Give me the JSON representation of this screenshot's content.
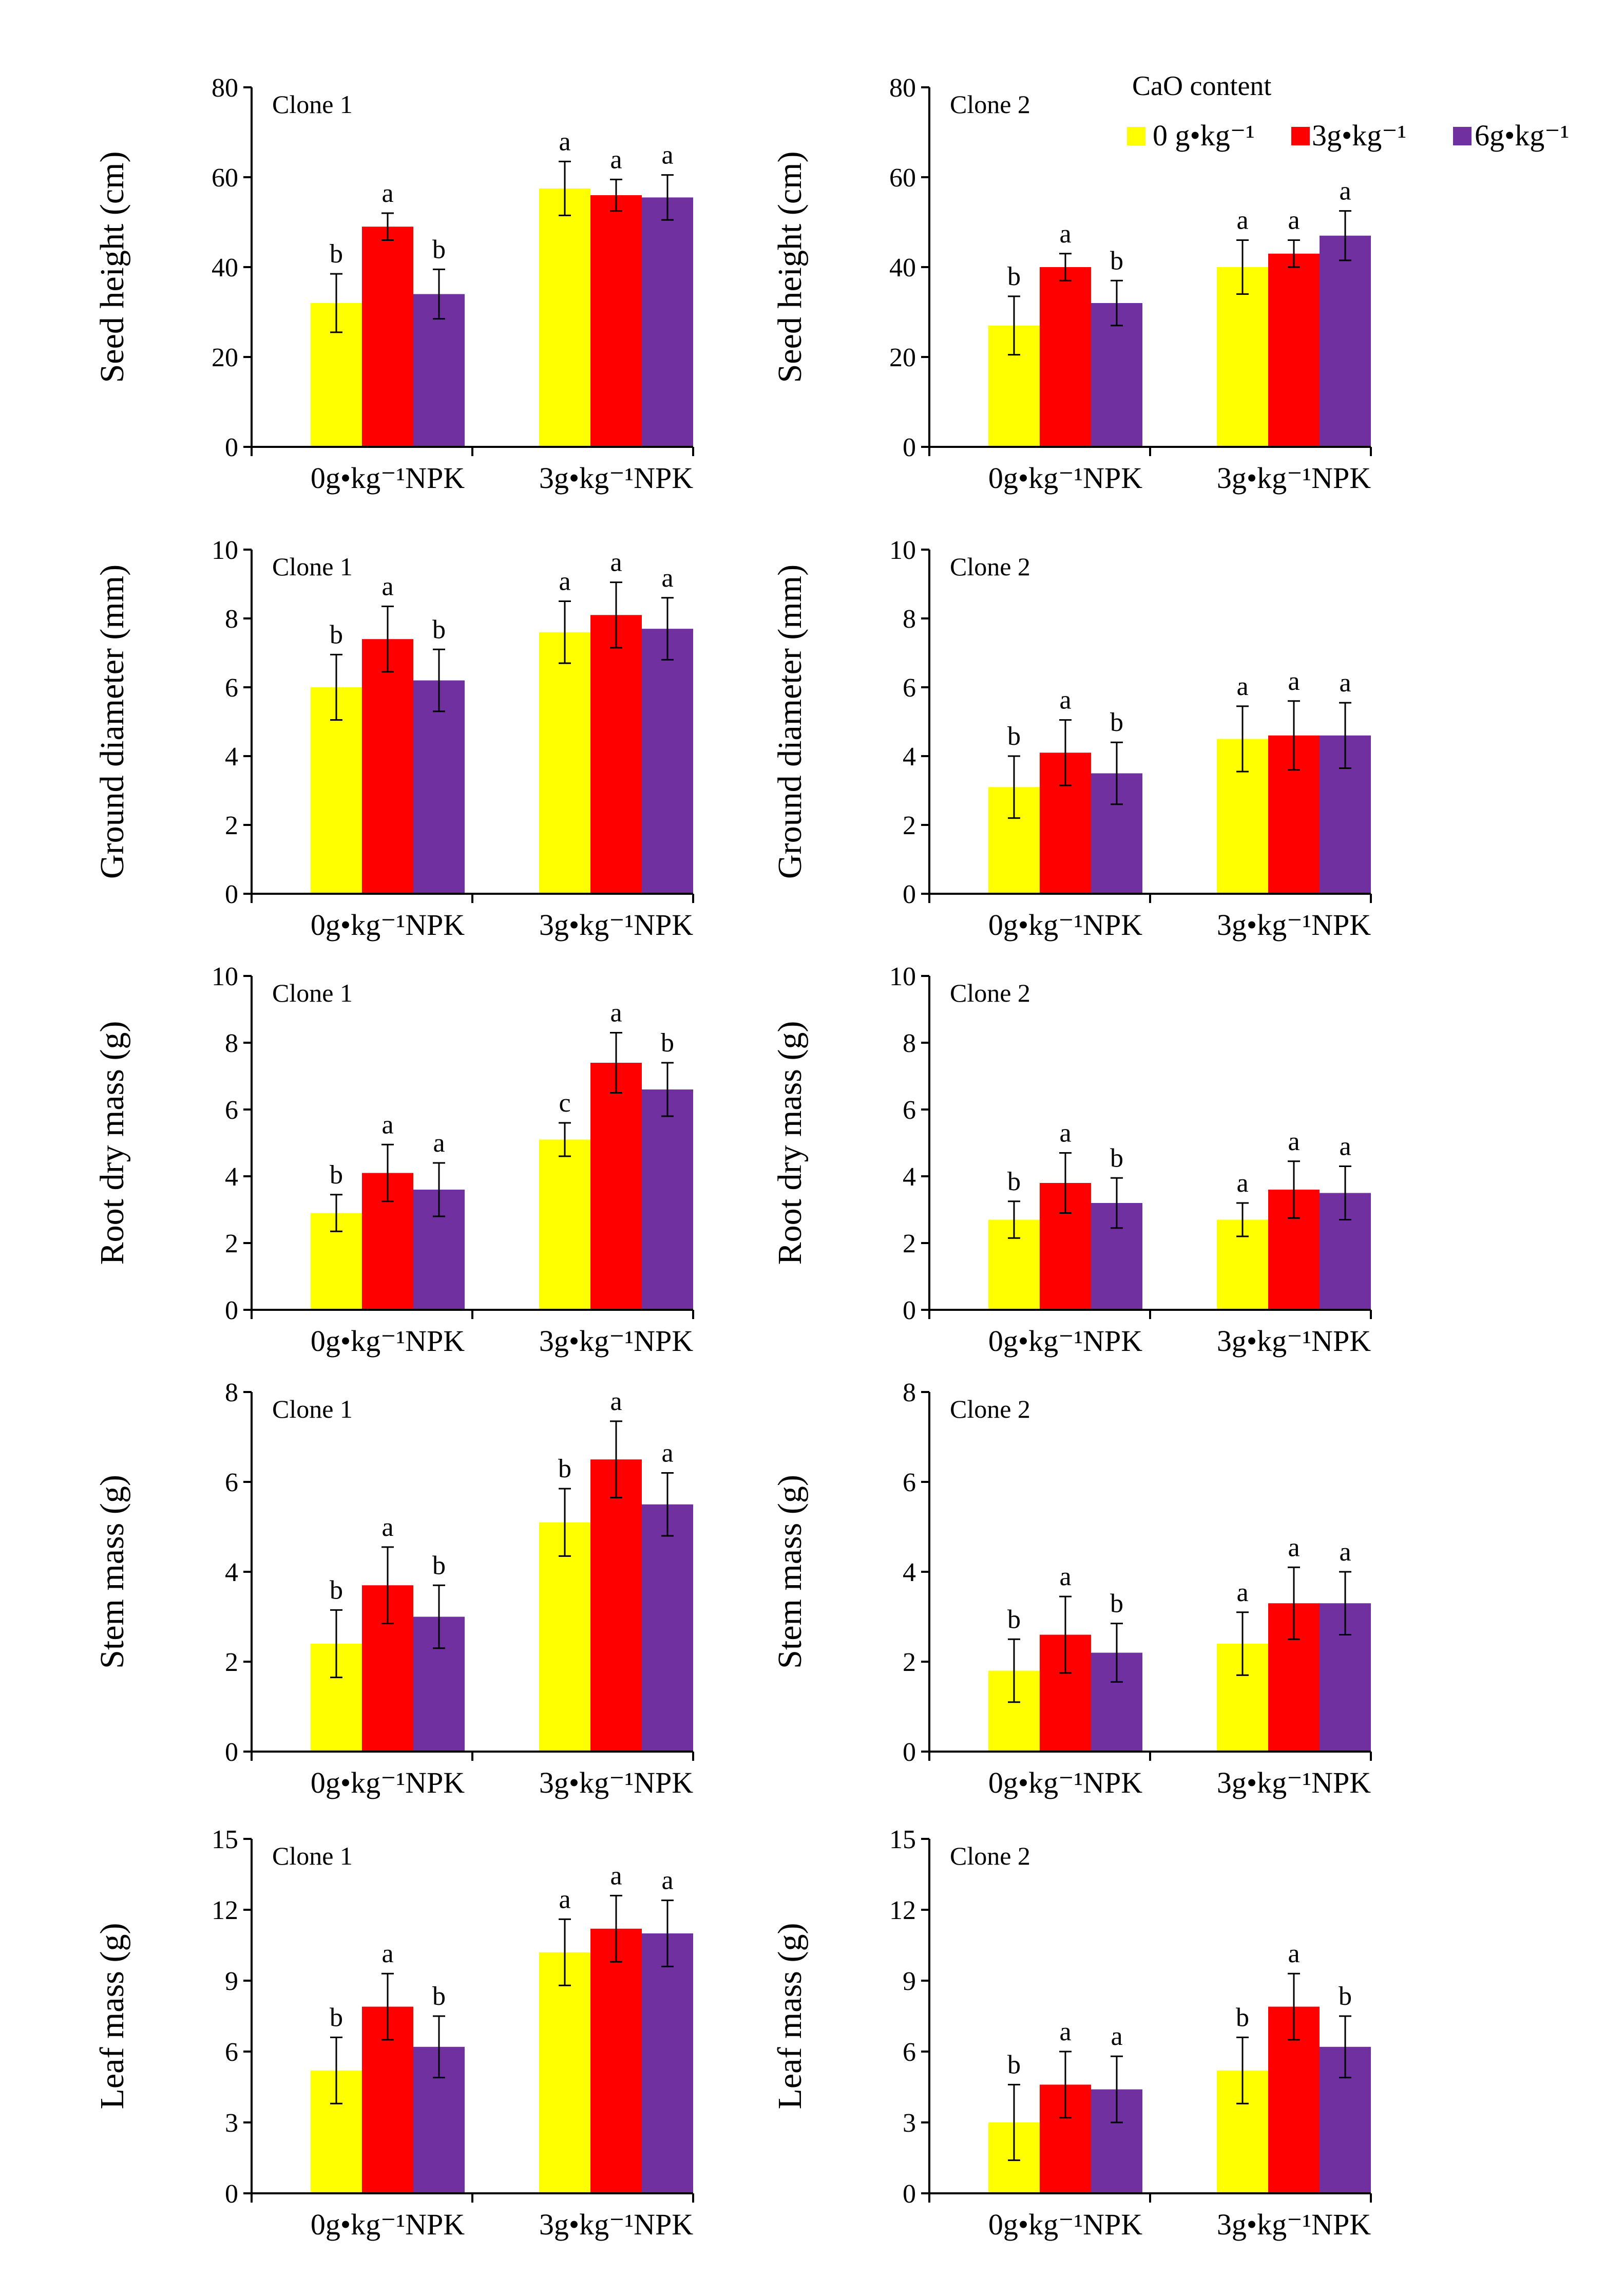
{
  "legend": {
    "title": "CaO content",
    "items": [
      {
        "label": "0 g•kg⁻¹",
        "color": "#ffff00"
      },
      {
        "label": "3g•kg⁻¹",
        "color": "#ff0000"
      },
      {
        "label": "6g•kg⁻¹",
        "color": "#7030a0"
      }
    ]
  },
  "chart_data": [
    {
      "type": "bar",
      "title": "Clone 1",
      "ylabel": "Seed height (cm)",
      "categories": [
        "0g•kg⁻¹NPK",
        "3g•kg⁻¹NPK"
      ],
      "ylim": [
        0,
        80
      ],
      "yticks": [
        0,
        20,
        40,
        60,
        80
      ],
      "series": [
        {
          "name": "0 g•kg⁻¹",
          "values": [
            32,
            57.5
          ],
          "errors": [
            6.5,
            6
          ],
          "letters": [
            "b",
            "a"
          ]
        },
        {
          "name": "3g•kg⁻¹",
          "values": [
            49,
            56
          ],
          "errors": [
            3,
            3.5
          ],
          "letters": [
            "a",
            "a"
          ]
        },
        {
          "name": "6g•kg⁻¹",
          "values": [
            34,
            55.5
          ],
          "errors": [
            5.5,
            5
          ],
          "letters": [
            "b",
            "a"
          ]
        }
      ]
    },
    {
      "type": "bar",
      "title": "Clone 2",
      "ylabel": "Seed height (cm)",
      "categories": [
        "0g•kg⁻¹NPK",
        "3g•kg⁻¹NPK"
      ],
      "ylim": [
        0,
        80
      ],
      "yticks": [
        0,
        20,
        40,
        60,
        80
      ],
      "series": [
        {
          "name": "0 g•kg⁻¹",
          "values": [
            27,
            40
          ],
          "errors": [
            6.5,
            6
          ],
          "letters": [
            "b",
            "a"
          ]
        },
        {
          "name": "3g•kg⁻¹",
          "values": [
            40,
            43
          ],
          "errors": [
            3,
            3
          ],
          "letters": [
            "a",
            "a"
          ]
        },
        {
          "name": "6g•kg⁻¹",
          "values": [
            32,
            47
          ],
          "errors": [
            5,
            5.5
          ],
          "letters": [
            "b",
            "a"
          ]
        }
      ]
    },
    {
      "type": "bar",
      "title": "Clone 1",
      "ylabel": "Ground diameter (mm)",
      "categories": [
        "0g•kg⁻¹NPK",
        "3g•kg⁻¹NPK"
      ],
      "ylim": [
        0,
        10
      ],
      "yticks": [
        0,
        2,
        4,
        6,
        8,
        10
      ],
      "series": [
        {
          "name": "0 g•kg⁻¹",
          "values": [
            6,
            7.6
          ],
          "errors": [
            0.95,
            0.9
          ],
          "letters": [
            "b",
            "a"
          ]
        },
        {
          "name": "3g•kg⁻¹",
          "values": [
            7.4,
            8.1
          ],
          "errors": [
            0.95,
            0.95
          ],
          "letters": [
            "a",
            "a"
          ]
        },
        {
          "name": "6g•kg⁻¹",
          "values": [
            6.2,
            7.7
          ],
          "errors": [
            0.9,
            0.9
          ],
          "letters": [
            "b",
            "a"
          ]
        }
      ]
    },
    {
      "type": "bar",
      "title": "Clone 2",
      "ylabel": "Ground diameter (mm)",
      "categories": [
        "0g•kg⁻¹NPK",
        "3g•kg⁻¹NPK"
      ],
      "ylim": [
        0,
        10
      ],
      "yticks": [
        0,
        2,
        4,
        6,
        8,
        10
      ],
      "series": [
        {
          "name": "0 g•kg⁻¹",
          "values": [
            3.1,
            4.5
          ],
          "errors": [
            0.9,
            0.95
          ],
          "letters": [
            "b",
            "a"
          ]
        },
        {
          "name": "3g•kg⁻¹",
          "values": [
            4.1,
            4.6
          ],
          "errors": [
            0.95,
            1.0
          ],
          "letters": [
            "a",
            "a"
          ]
        },
        {
          "name": "6g•kg⁻¹",
          "values": [
            3.5,
            4.6
          ],
          "errors": [
            0.9,
            0.95
          ],
          "letters": [
            "b",
            "a"
          ]
        }
      ]
    },
    {
      "type": "bar",
      "title": "Clone 1",
      "ylabel": "Root dry mass (g)",
      "categories": [
        "0g•kg⁻¹NPK",
        "3g•kg⁻¹NPK"
      ],
      "ylim": [
        0,
        10
      ],
      "yticks": [
        0,
        2,
        4,
        6,
        8,
        10
      ],
      "series": [
        {
          "name": "0 g•kg⁻¹",
          "values": [
            2.9,
            5.1
          ],
          "errors": [
            0.55,
            0.5
          ],
          "letters": [
            "b",
            "c"
          ]
        },
        {
          "name": "3g•kg⁻¹",
          "values": [
            4.1,
            7.4
          ],
          "errors": [
            0.85,
            0.9
          ],
          "letters": [
            "a",
            "a"
          ]
        },
        {
          "name": "6g•kg⁻¹",
          "values": [
            3.6,
            6.6
          ],
          "errors": [
            0.8,
            0.8
          ],
          "letters": [
            "a",
            "b"
          ]
        }
      ]
    },
    {
      "type": "bar",
      "title": "Clone 2",
      "ylabel": "Root dry mass (g)",
      "categories": [
        "0g•kg⁻¹NPK",
        "3g•kg⁻¹NPK"
      ],
      "ylim": [
        0,
        10
      ],
      "yticks": [
        0,
        2,
        4,
        6,
        8,
        10
      ],
      "series": [
        {
          "name": "0 g•kg⁻¹",
          "values": [
            2.7,
            2.7
          ],
          "errors": [
            0.55,
            0.5
          ],
          "letters": [
            "b",
            "a"
          ]
        },
        {
          "name": "3g•kg⁻¹",
          "values": [
            3.8,
            3.6
          ],
          "errors": [
            0.9,
            0.85
          ],
          "letters": [
            "a",
            "a"
          ]
        },
        {
          "name": "6g•kg⁻¹",
          "values": [
            3.2,
            3.5
          ],
          "errors": [
            0.75,
            0.8
          ],
          "letters": [
            "b",
            "a"
          ]
        }
      ]
    },
    {
      "type": "bar",
      "title": "Clone 1",
      "ylabel": "Stem mass (g)",
      "categories": [
        "0g•kg⁻¹NPK",
        "3g•kg⁻¹NPK"
      ],
      "ylim": [
        0,
        8
      ],
      "yticks": [
        0,
        2,
        4,
        6,
        8
      ],
      "series": [
        {
          "name": "0 g•kg⁻¹",
          "values": [
            2.4,
            5.1
          ],
          "errors": [
            0.75,
            0.75
          ],
          "letters": [
            "b",
            "b"
          ]
        },
        {
          "name": "3g•kg⁻¹",
          "values": [
            3.7,
            6.5
          ],
          "errors": [
            0.85,
            0.85
          ],
          "letters": [
            "a",
            "a"
          ]
        },
        {
          "name": "6g•kg⁻¹",
          "values": [
            3.0,
            5.5
          ],
          "errors": [
            0.7,
            0.7
          ],
          "letters": [
            "b",
            "a"
          ]
        }
      ]
    },
    {
      "type": "bar",
      "title": "Clone 2",
      "ylabel": "Stem mass (g)",
      "categories": [
        "0g•kg⁻¹NPK",
        "3g•kg⁻¹NPK"
      ],
      "ylim": [
        0,
        8
      ],
      "yticks": [
        0,
        2,
        4,
        6,
        8
      ],
      "series": [
        {
          "name": "0 g•kg⁻¹",
          "values": [
            1.8,
            2.4
          ],
          "errors": [
            0.7,
            0.7
          ],
          "letters": [
            "b",
            "a"
          ]
        },
        {
          "name": "3g•kg⁻¹",
          "values": [
            2.6,
            3.3
          ],
          "errors": [
            0.85,
            0.8
          ],
          "letters": [
            "a",
            "a"
          ]
        },
        {
          "name": "6g•kg⁻¹",
          "values": [
            2.2,
            3.3
          ],
          "errors": [
            0.65,
            0.7
          ],
          "letters": [
            "b",
            "a"
          ]
        }
      ]
    },
    {
      "type": "bar",
      "title": "Clone 1",
      "ylabel": "Leaf mass (g)",
      "categories": [
        "0g•kg⁻¹NPK",
        "3g•kg⁻¹NPK"
      ],
      "ylim": [
        0,
        15
      ],
      "yticks": [
        0,
        3,
        6,
        9,
        12,
        15
      ],
      "series": [
        {
          "name": "0 g•kg⁻¹",
          "values": [
            5.2,
            10.2
          ],
          "errors": [
            1.4,
            1.4
          ],
          "letters": [
            "b",
            "a"
          ]
        },
        {
          "name": "3g•kg⁻¹",
          "values": [
            7.9,
            11.2
          ],
          "errors": [
            1.4,
            1.4
          ],
          "letters": [
            "a",
            "a"
          ]
        },
        {
          "name": "6g•kg⁻¹",
          "values": [
            6.2,
            11.0
          ],
          "errors": [
            1.3,
            1.4
          ],
          "letters": [
            "b",
            "a"
          ]
        }
      ]
    },
    {
      "type": "bar",
      "title": "Clone 2",
      "ylabel": "Leaf mass (g)",
      "categories": [
        "0g•kg⁻¹NPK",
        "3g•kg⁻¹NPK"
      ],
      "ylim": [
        0,
        15
      ],
      "yticks": [
        0,
        3,
        6,
        9,
        12,
        15
      ],
      "series": [
        {
          "name": "0 g•kg⁻¹",
          "values": [
            3.0,
            5.2
          ],
          "errors": [
            1.6,
            1.4
          ],
          "letters": [
            "b",
            "b"
          ]
        },
        {
          "name": "3g•kg⁻¹",
          "values": [
            4.6,
            7.9
          ],
          "errors": [
            1.4,
            1.4
          ],
          "letters": [
            "a",
            "a"
          ]
        },
        {
          "name": "6g•kg⁻¹",
          "values": [
            4.4,
            6.2
          ],
          "errors": [
            1.4,
            1.3
          ],
          "letters": [
            "a",
            "b"
          ]
        }
      ]
    }
  ]
}
